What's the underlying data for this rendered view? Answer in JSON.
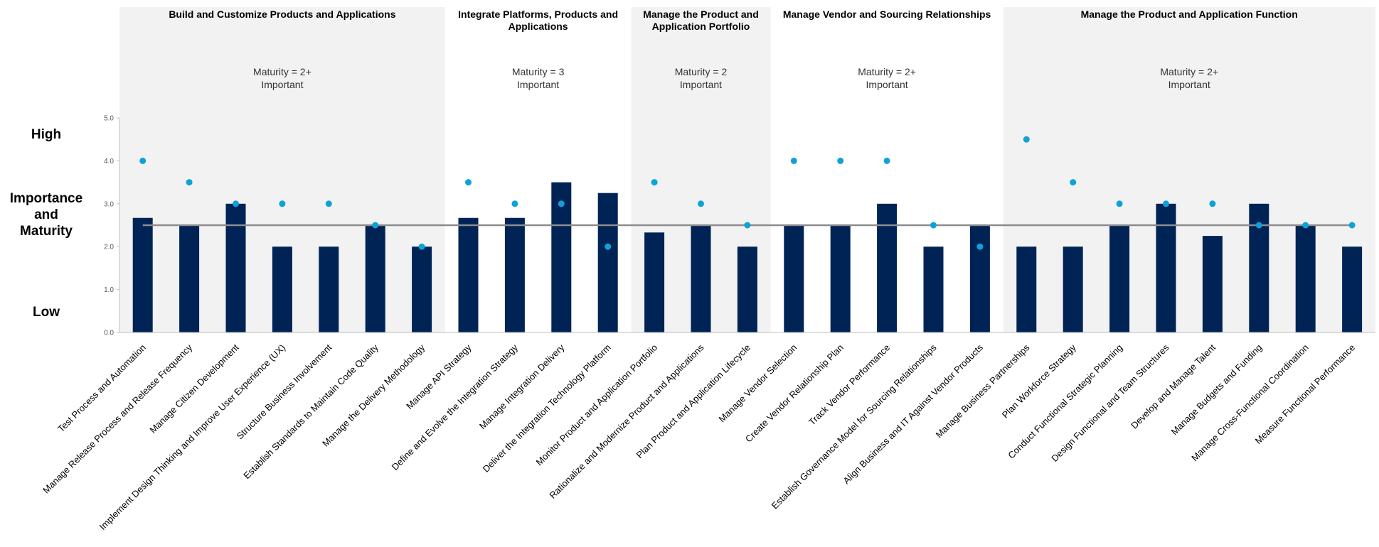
{
  "side_labels": {
    "high": "High",
    "middle": [
      "Importance",
      "and",
      "Maturity"
    ],
    "low": "Low"
  },
  "colors": {
    "maturity_bar": "#002356",
    "importance_dot": "#0ea2d9",
    "reference_line": "#8c8c8c",
    "band_shaded": "#f2f2f2",
    "band_plain": "#ffffff"
  },
  "chart_data": {
    "type": "bar",
    "title": "",
    "xlabel": "",
    "ylabel": "Importance and Maturity",
    "ylim": [
      0,
      5
    ],
    "yticks": [
      "0.0",
      "1.0",
      "2.0",
      "3.0",
      "4.0",
      "5.0"
    ],
    "reference_line": 2.5,
    "categories": [
      "Test Process and Automation",
      "Manage Release Process and Release Frequency",
      "Manage Citizen Development",
      "Implement Design Thinking and Improve User Experience (UX)",
      "Structure Business Involvement",
      "Establish Standards to Maintain Code Quality",
      "Manage the Delivery Methodology",
      "Manage API Strategy",
      "Define and Evolve the Integration Strategy",
      "Manage Integration Delivery",
      "Deliver the Integration Technology Platform",
      "Monitor Product and Application Portfolio",
      "Rationalize and Modernize Product and Applications",
      "Plan Product and Application Lifecycle",
      "Manage Vendor Selection",
      "Create Vendor Relationship Plan",
      "Track Vendor Performance",
      "Establish Governance Model for Sourcing Relationships",
      "Align Business and IT Against Vendor Products",
      "Manage Business Partnerships",
      "Plan Workforce Strategy",
      "Conduct Functional Strategic Planning",
      "Design Functional and Team Structures",
      "Develop and Manage Talent",
      "Manage Budgets and Funding",
      "Manage Cross-Functional Coordination",
      "Measure Functional Performance"
    ],
    "series": [
      {
        "kind": "bar",
        "values": [
          2.67,
          2.5,
          3.0,
          2.0,
          2.0,
          2.5,
          2.0,
          2.67,
          2.67,
          3.5,
          3.25,
          2.33,
          2.5,
          2.0,
          2.5,
          2.5,
          3.0,
          2.0,
          2.5,
          2.0,
          2.0,
          2.5,
          3.0,
          2.25,
          3.0,
          2.5,
          2.0
        ]
      },
      {
        "kind": "dot",
        "values": [
          4.0,
          3.5,
          3.0,
          3.0,
          3.0,
          2.5,
          2.0,
          3.5,
          3.0,
          3.0,
          2.0,
          3.5,
          3.0,
          2.5,
          4.0,
          4.0,
          4.0,
          2.5,
          2.0,
          4.5,
          3.5,
          3.0,
          3.0,
          3.0,
          2.5,
          2.5,
          2.5
        ]
      }
    ],
    "groups": [
      {
        "title": [
          "Build and Customize Products and Applications"
        ],
        "maturity": "Maturity = 2+",
        "importance": "Important",
        "start": 0,
        "end": 6,
        "shaded": true
      },
      {
        "title": [
          "Integrate Platforms, Products and",
          "Applications"
        ],
        "maturity": "Maturity = 3",
        "importance": "Important",
        "start": 7,
        "end": 10,
        "shaded": false
      },
      {
        "title": [
          "Manage the Product and",
          "Application Portfolio"
        ],
        "maturity": "Maturity = 2",
        "importance": "Important",
        "start": 11,
        "end": 13,
        "shaded": true
      },
      {
        "title": [
          "Manage Vendor and Sourcing Relationships"
        ],
        "maturity": "Maturity = 2+",
        "importance": "Important",
        "start": 14,
        "end": 18,
        "shaded": false
      },
      {
        "title": [
          "Manage the Product and Application Function"
        ],
        "maturity": "Maturity = 2+",
        "importance": "Important",
        "start": 19,
        "end": 26,
        "shaded": true
      }
    ]
  }
}
